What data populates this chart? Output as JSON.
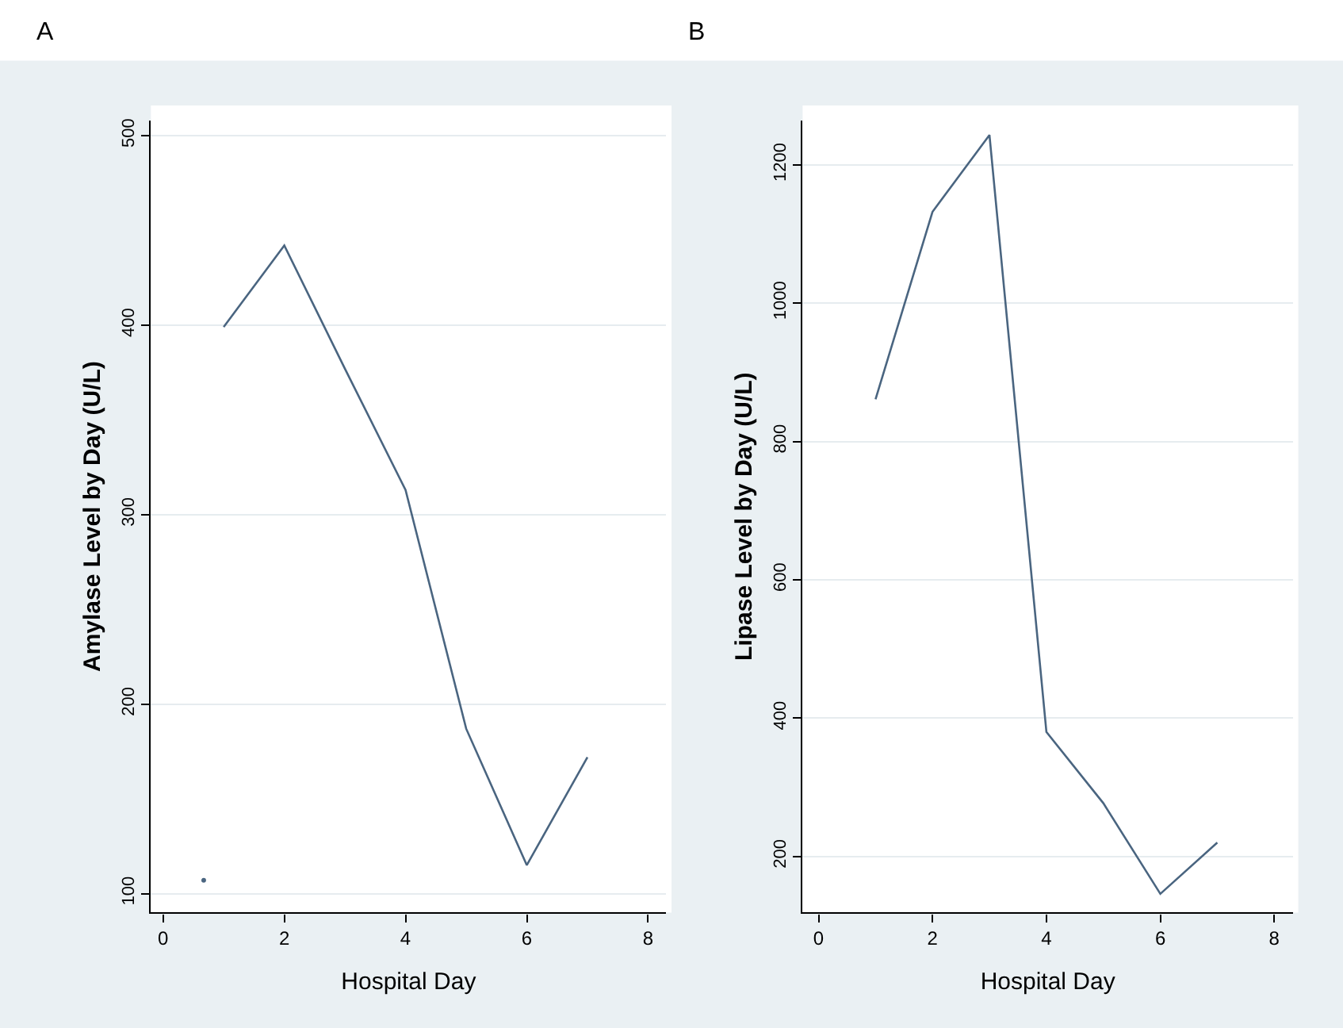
{
  "chart_data": [
    {
      "type": "line",
      "title": "A",
      "xlabel": "Hospital Day",
      "ylabel": "Amylase Level by Day (U/L)",
      "xlim": [
        -0.2,
        8.3
      ],
      "xticks": [
        0,
        2,
        4,
        6,
        8
      ],
      "ylim": [
        90,
        508
      ],
      "yticks": [
        100,
        200,
        300,
        400,
        500
      ],
      "grid": "y",
      "marker": "none",
      "line_style": "solid",
      "series": [
        {
          "color": "#4a6580",
          "x": [
            1,
            2,
            3,
            4,
            5,
            6,
            7
          ],
          "values": [
            399,
            442,
            377,
            313,
            187,
            115,
            172
          ]
        },
        {
          "type": "scatter",
          "color": "#4a6580",
          "x": [
            0.67
          ],
          "values": [
            107
          ]
        }
      ]
    },
    {
      "type": "line",
      "title": "B",
      "xlabel": "Hospital Day",
      "ylabel": "Lipase Level by Day (U/L)",
      "xlim": [
        -0.28,
        8.33
      ],
      "xticks": [
        0,
        2,
        4,
        6,
        8
      ],
      "ylim": [
        119,
        1264
      ],
      "yticks": [
        200,
        400,
        600,
        800,
        1000,
        1200
      ],
      "grid": "y",
      "marker": "none",
      "line_style": "solid",
      "series": [
        {
          "color": "#4a6580",
          "x": [
            1,
            2,
            3,
            4,
            5,
            6,
            7
          ],
          "values": [
            861,
            1132,
            1243,
            380,
            277,
            146,
            220
          ]
        }
      ]
    }
  ]
}
